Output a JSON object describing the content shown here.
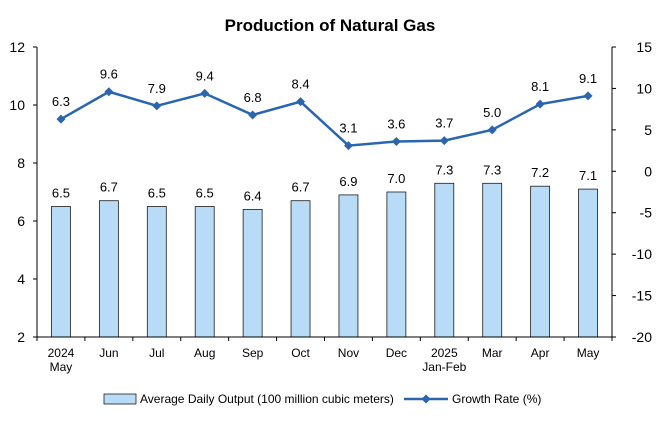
{
  "chart_data": {
    "type": "bar",
    "title": "Production of Natural Gas",
    "categories": [
      [
        "2024",
        "May"
      ],
      [
        "Jun"
      ],
      [
        "Jul"
      ],
      [
        "Aug"
      ],
      [
        "Sep"
      ],
      [
        "Oct"
      ],
      [
        "Nov"
      ],
      [
        "Dec"
      ],
      [
        "2025",
        "Jan-Feb"
      ],
      [
        "Mar"
      ],
      [
        "Apr"
      ],
      [
        "May"
      ]
    ],
    "series": [
      {
        "name": "Average Daily Output (100 million cubic meters)",
        "type": "bar",
        "axis": "left",
        "color": "#b8dcf8",
        "edge_color": "#1c1c1c",
        "values": [
          6.5,
          6.7,
          6.5,
          6.5,
          6.4,
          6.7,
          6.9,
          7.0,
          7.3,
          7.3,
          7.2,
          7.1
        ],
        "labels": [
          "6.5",
          "6.7",
          "6.5",
          "6.5",
          "6.4",
          "6.7",
          "6.9",
          "7.0",
          "7.3",
          "7.3",
          "7.2",
          "7.1"
        ]
      },
      {
        "name": "Growth Rate (%)",
        "type": "line",
        "axis": "right",
        "color": "#2a66b0",
        "marker": "diamond",
        "values": [
          6.3,
          9.6,
          7.9,
          9.4,
          6.8,
          8.4,
          3.1,
          3.6,
          3.7,
          5.0,
          8.1,
          9.1
        ],
        "labels": [
          "6.3",
          "9.6",
          "7.9",
          "9.4",
          "6.8",
          "8.4",
          "3.1",
          "3.6",
          "3.7",
          "5.0",
          "8.1",
          "9.1"
        ]
      }
    ],
    "y_left": {
      "lim": [
        2,
        12
      ],
      "ticks": [
        2,
        4,
        6,
        8,
        10,
        12
      ],
      "tick_labels": [
        "2",
        "4",
        "6",
        "8",
        "10",
        "12"
      ]
    },
    "y_right": {
      "lim": [
        -20,
        15
      ],
      "ticks": [
        -20,
        -15,
        -10,
        -5,
        0,
        5,
        10,
        15
      ],
      "tick_labels": [
        "-20",
        "-15",
        "-10",
        "-5",
        "0",
        "5",
        "10",
        "15"
      ]
    },
    "grid": false,
    "legend_position": "bottom"
  }
}
